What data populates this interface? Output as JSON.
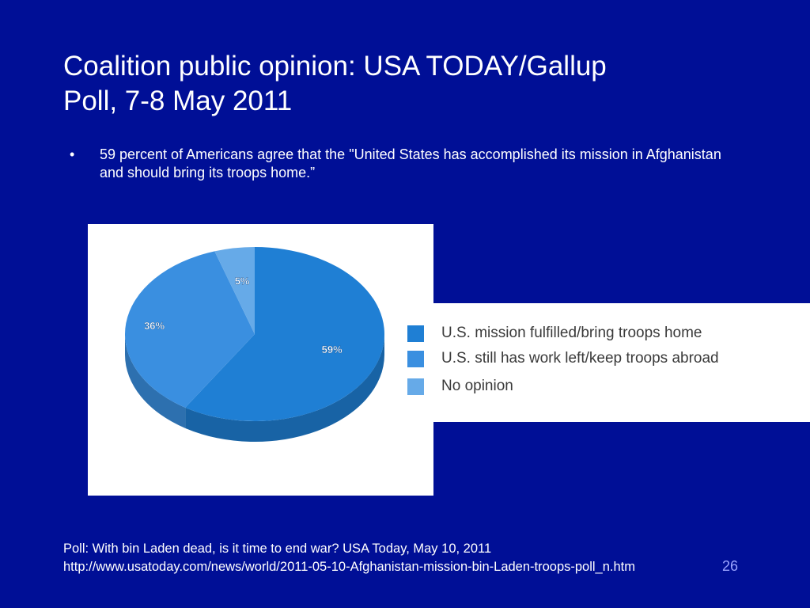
{
  "slide": {
    "title_line1": "Coalition public opinion:  USA TODAY/Gallup",
    "title_line2": "Poll, 7-8 May 2011",
    "bullet_marker": "•",
    "bullet": "59 percent of Americans agree that the \"United States has accomplished its mission in Afghanistan and should bring its troops home.”",
    "source_line1": "Poll: With bin Laden dead, is it time to end war? USA Today, May 10, 2011",
    "source_line2": "http://www.usatoday.com/news/world/2011-05-10-Afghanistan-mission-bin-Laden-troops-poll_n.htm",
    "page_number": "26",
    "background_color": "#000f96"
  },
  "chart_data": {
    "type": "pie",
    "categories": [
      "U.S. mission fulfilled/bring troops home",
      "U.S. still has work left/keep troops abroad",
      "No opinion"
    ],
    "values": [
      59,
      36,
      5
    ],
    "data_labels": [
      "59%",
      "36%",
      "5%"
    ],
    "colors": [
      "#1f7fd4",
      "#3a8fe0",
      "#66aae8"
    ],
    "legend_position": "right"
  }
}
